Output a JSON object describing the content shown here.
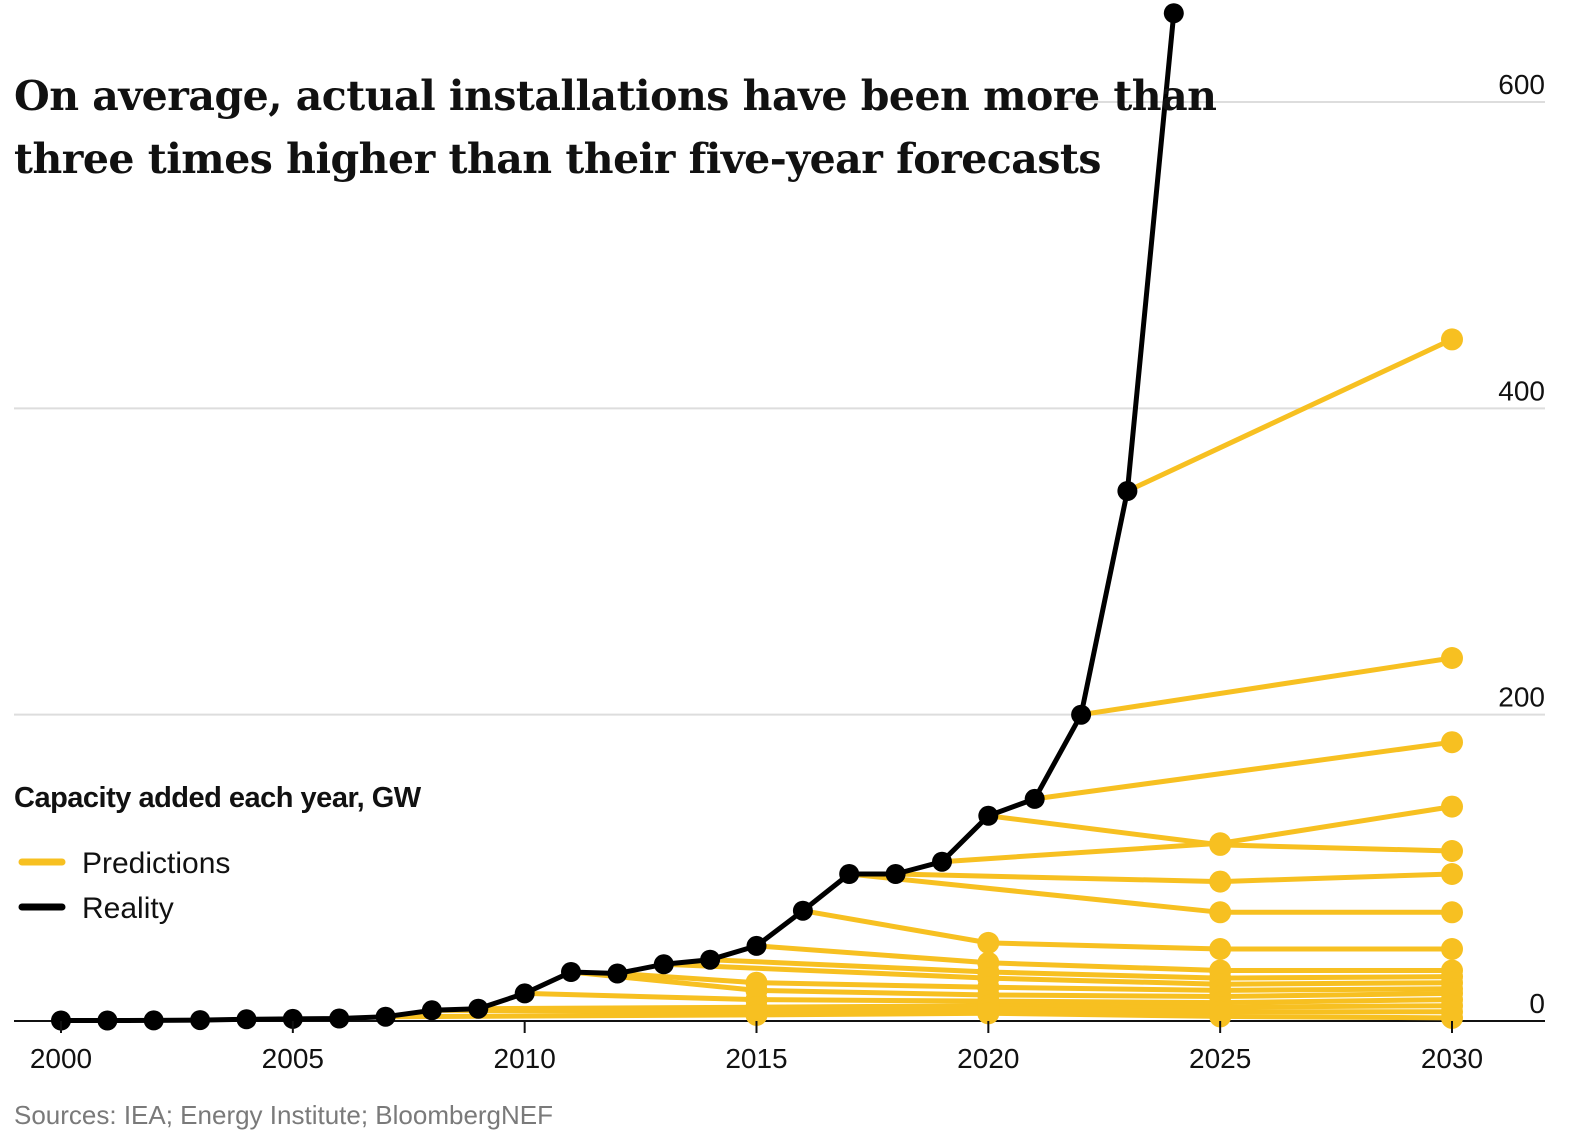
{
  "chart_data": {
    "type": "line",
    "title": "On average, actual installations have been more than three times higher than their five-year forecasts",
    "title_lines": [
      "On average, actual installations have been more than",
      "three times higher than their five-year forecasts"
    ],
    "ylabel": "Capacity added each year, GW",
    "xlabel": "",
    "source": "Sources: IEA; Energy Institute; BloombergNEF",
    "xlim": [
      2000,
      2030
    ],
    "ylim": [
      0,
      600
    ],
    "x_ticks": [
      2000,
      2005,
      2010,
      2015,
      2020,
      2025,
      2030
    ],
    "y_ticks": [
      0,
      200,
      400,
      600
    ],
    "grid": "horizontal",
    "legend_position": "left",
    "legend": [
      {
        "label": "Predictions",
        "color": "#f7c021"
      },
      {
        "label": "Reality",
        "color": "#000000"
      }
    ],
    "colors": {
      "predictions": "#f7c021",
      "reality": "#000000",
      "grid": "#dddddd"
    },
    "series": [
      {
        "name": "Reality",
        "x": [
          2000,
          2001,
          2002,
          2003,
          2004,
          2005,
          2006,
          2007,
          2008,
          2009,
          2010,
          2011,
          2012,
          2013,
          2014,
          2015,
          2016,
          2017,
          2018,
          2019,
          2020,
          2021,
          2022,
          2023,
          2024
        ],
        "y": [
          0.3,
          0.3,
          0.4,
          0.6,
          1.1,
          1.4,
          1.6,
          2.8,
          7,
          8,
          18,
          32,
          31,
          37,
          40,
          49,
          72,
          96,
          96,
          104,
          134,
          145,
          200,
          346,
          658
        ]
      },
      {
        "name": "Predictions",
        "x": [
          2023,
          2030
        ],
        "y": [
          346,
          445
        ]
      },
      {
        "name": "Predictions",
        "x": [
          2022,
          2030
        ],
        "y": [
          200,
          237
        ]
      },
      {
        "name": "Predictions",
        "x": [
          2021,
          2030
        ],
        "y": [
          145,
          182
        ]
      },
      {
        "name": "Predictions",
        "x": [
          2019,
          2025,
          2030
        ],
        "y": [
          104,
          116,
          140
        ]
      },
      {
        "name": "Predictions",
        "x": [
          2020,
          2025,
          2030
        ],
        "y": [
          134,
          115,
          111
        ]
      },
      {
        "name": "Predictions",
        "x": [
          2018,
          2025,
          2030
        ],
        "y": [
          96,
          91,
          96
        ]
      },
      {
        "name": "Predictions",
        "x": [
          2017,
          2025,
          2030
        ],
        "y": [
          96,
          71,
          71
        ]
      },
      {
        "name": "Predictions",
        "x": [
          2016,
          2020,
          2025,
          2030
        ],
        "y": [
          72,
          51,
          47,
          47
        ]
      },
      {
        "name": "Predictions",
        "x": [
          2015,
          2020,
          2025,
          2030
        ],
        "y": [
          49,
          38,
          33,
          33
        ]
      },
      {
        "name": "Predictions",
        "x": [
          2014,
          2020,
          2025,
          2030
        ],
        "y": [
          40,
          32,
          28,
          29
        ]
      },
      {
        "name": "Predictions",
        "x": [
          2013,
          2020,
          2025,
          2030
        ],
        "y": [
          37,
          28,
          24,
          25
        ]
      },
      {
        "name": "Predictions",
        "x": [
          2012,
          2015,
          2020,
          2025,
          2030
        ],
        "y": [
          31,
          25,
          22,
          20,
          21
        ]
      },
      {
        "name": "Predictions",
        "x": [
          2011,
          2015,
          2020,
          2025,
          2030
        ],
        "y": [
          32,
          20,
          17,
          16,
          18
        ]
      },
      {
        "name": "Predictions",
        "x": [
          2010,
          2015,
          2020,
          2025,
          2030
        ],
        "y": [
          18,
          14,
          13,
          12,
          14
        ]
      },
      {
        "name": "Predictions",
        "x": [
          2009,
          2015,
          2020,
          2025,
          2030
        ],
        "y": [
          8,
          9,
          10,
          9,
          10
        ]
      },
      {
        "name": "Predictions",
        "x": [
          2008,
          2015,
          2020,
          2025,
          2030
        ],
        "y": [
          7,
          6,
          8,
          6,
          6
        ]
      },
      {
        "name": "Predictions",
        "x": [
          2007,
          2015,
          2020,
          2025,
          2030
        ],
        "y": [
          2.8,
          4,
          5,
          3,
          2
        ]
      }
    ]
  }
}
